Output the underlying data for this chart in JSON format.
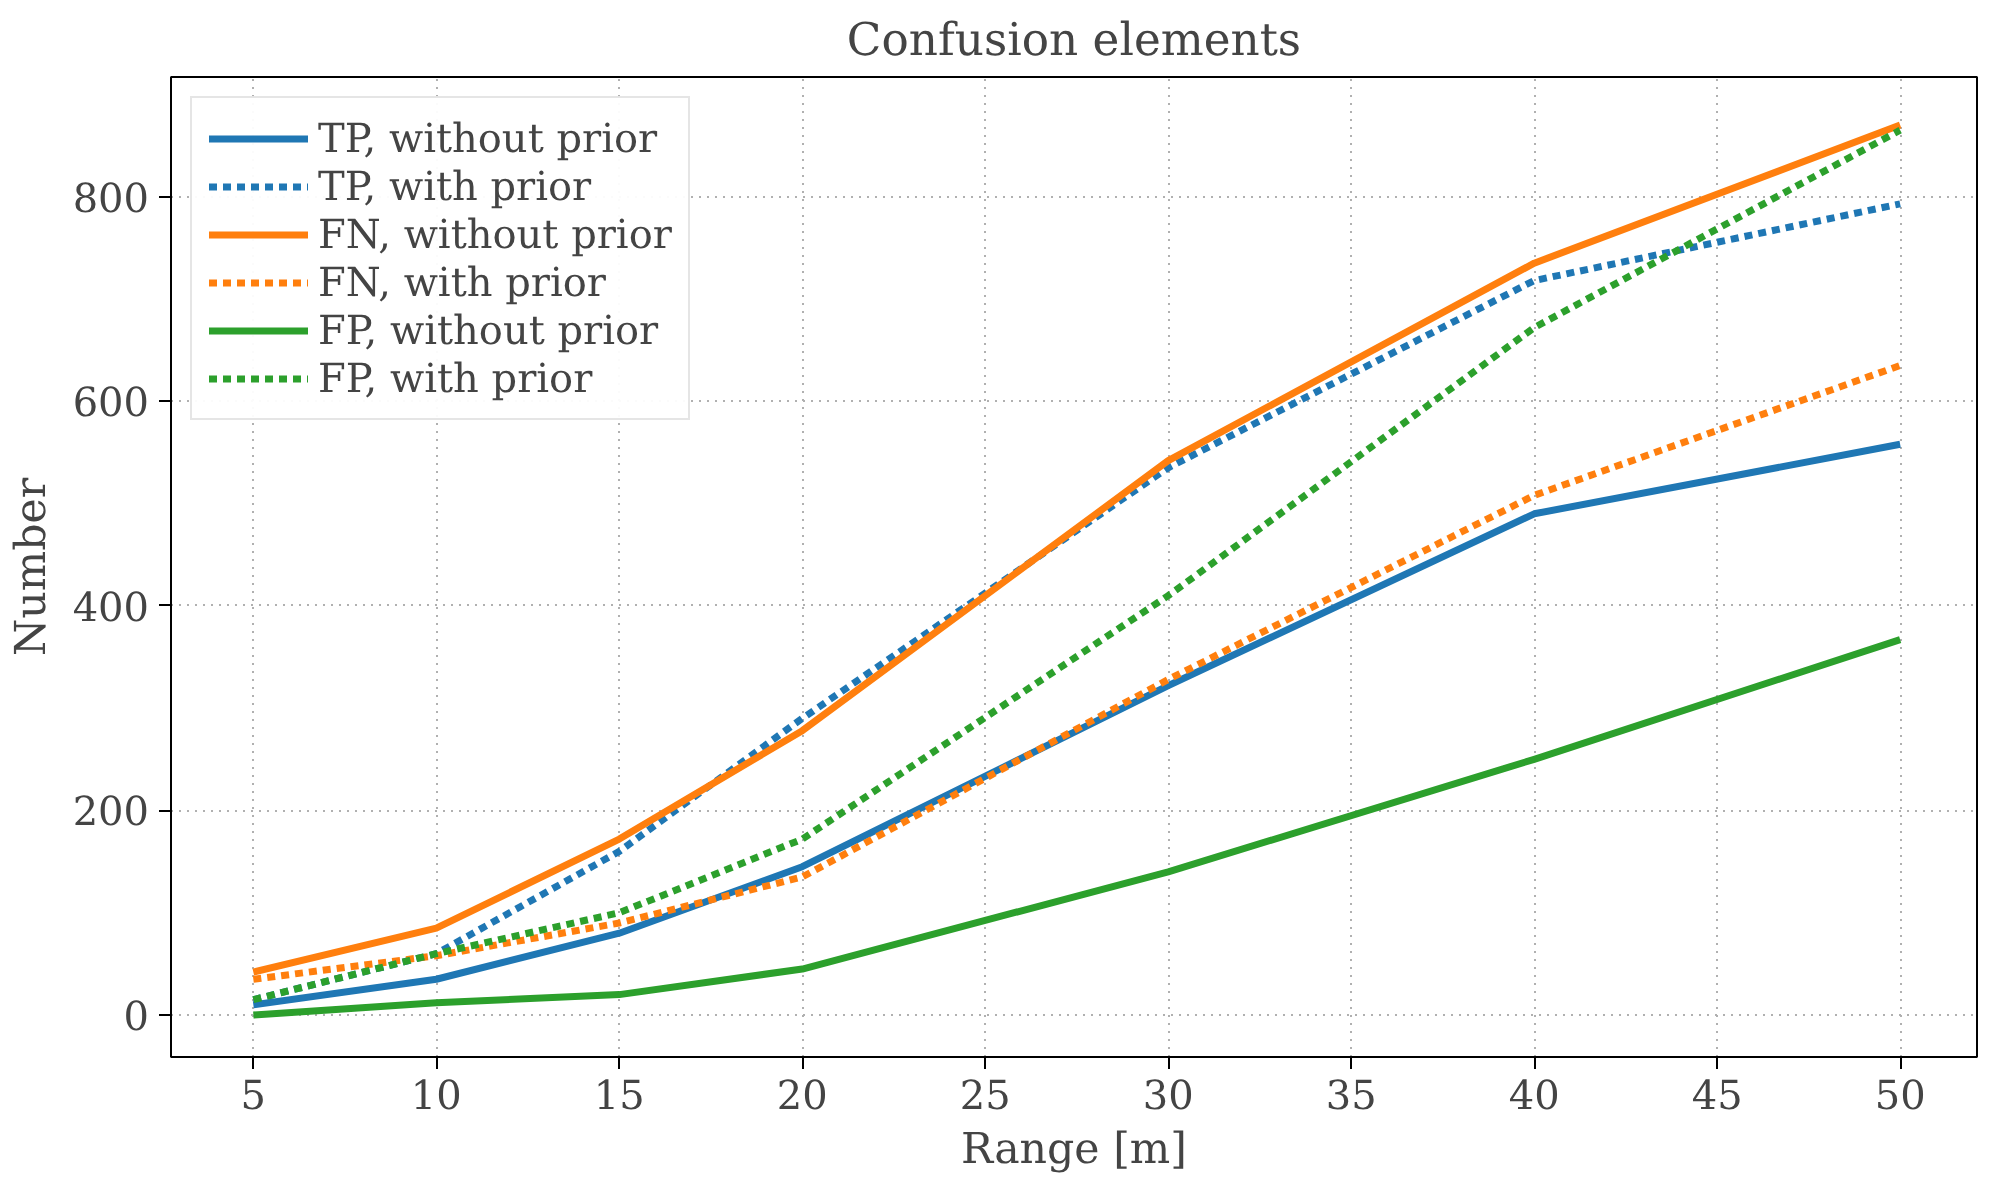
{
  "chart_data": {
    "type": "line",
    "title": "Confusion elements",
    "xlabel": "Range [m]",
    "ylabel": "Number",
    "x": [
      5,
      10,
      15,
      20,
      30,
      40,
      50
    ],
    "xlim": [
      2.75,
      52.1
    ],
    "ylim": [
      -41,
      917
    ],
    "xticks": [
      5,
      10,
      15,
      20,
      25,
      30,
      35,
      40,
      45,
      50
    ],
    "yticks": [
      0,
      200,
      400,
      600,
      800
    ],
    "grid": true,
    "legend": "top left",
    "marker": "none",
    "series": [
      {
        "name": "TP, without prior",
        "color": "#1f77b4",
        "line_style": "solid",
        "values": [
          10,
          35,
          80,
          145,
          322,
          490,
          558
        ]
      },
      {
        "name": "TP, with prior",
        "color": "#1f77b4",
        "line_style": "dashed",
        "values": [
          15,
          60,
          160,
          290,
          535,
          718,
          793
        ]
      },
      {
        "name": "FN, without prior",
        "color": "#ff7f0e",
        "line_style": "solid",
        "values": [
          42,
          85,
          172,
          278,
          542,
          735,
          870
        ]
      },
      {
        "name": "FN, with prior",
        "color": "#ff7f0e",
        "line_style": "dashed",
        "values": [
          35,
          58,
          90,
          135,
          328,
          508,
          635
        ]
      },
      {
        "name": "FP, without prior",
        "color": "#2ca02c",
        "line_style": "solid",
        "values": [
          0,
          12,
          20,
          45,
          140,
          250,
          367
        ]
      },
      {
        "name": "FP, with prior",
        "color": "#2ca02c",
        "line_style": "dashed",
        "values": [
          15,
          60,
          100,
          172,
          410,
          672,
          865
        ]
      }
    ]
  }
}
